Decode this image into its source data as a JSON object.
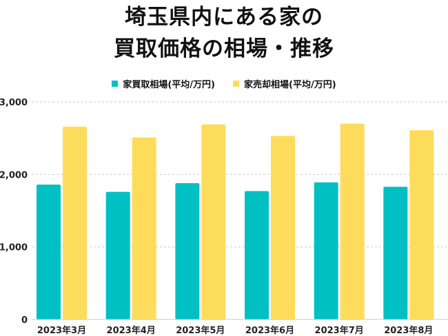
{
  "title_lines": [
    "埼玉県内にある家の",
    "買取価格の相場・推移"
  ],
  "colors": {
    "buy": "#00c0c4",
    "sell": "#fedc5b",
    "grid": "#c8c8c8"
  },
  "chart_data": {
    "type": "bar",
    "categories": [
      "2023年3月",
      "2023年4月",
      "2023年5月",
      "2023年6月",
      "2023年7月",
      "2023年8月"
    ],
    "series": [
      {
        "name": "家買取相場(平均/万円)",
        "values": [
          1860,
          1760,
          1880,
          1770,
          1890,
          1830
        ]
      },
      {
        "name": "家売却相場(平均/万円)",
        "values": [
          2660,
          2510,
          2690,
          2530,
          2700,
          2610
        ]
      }
    ],
    "yticks": [
      "0",
      "1,000",
      "2,000",
      "3,000"
    ],
    "ylim": [
      0,
      3000
    ],
    "grid": true,
    "legend_position": "top"
  }
}
